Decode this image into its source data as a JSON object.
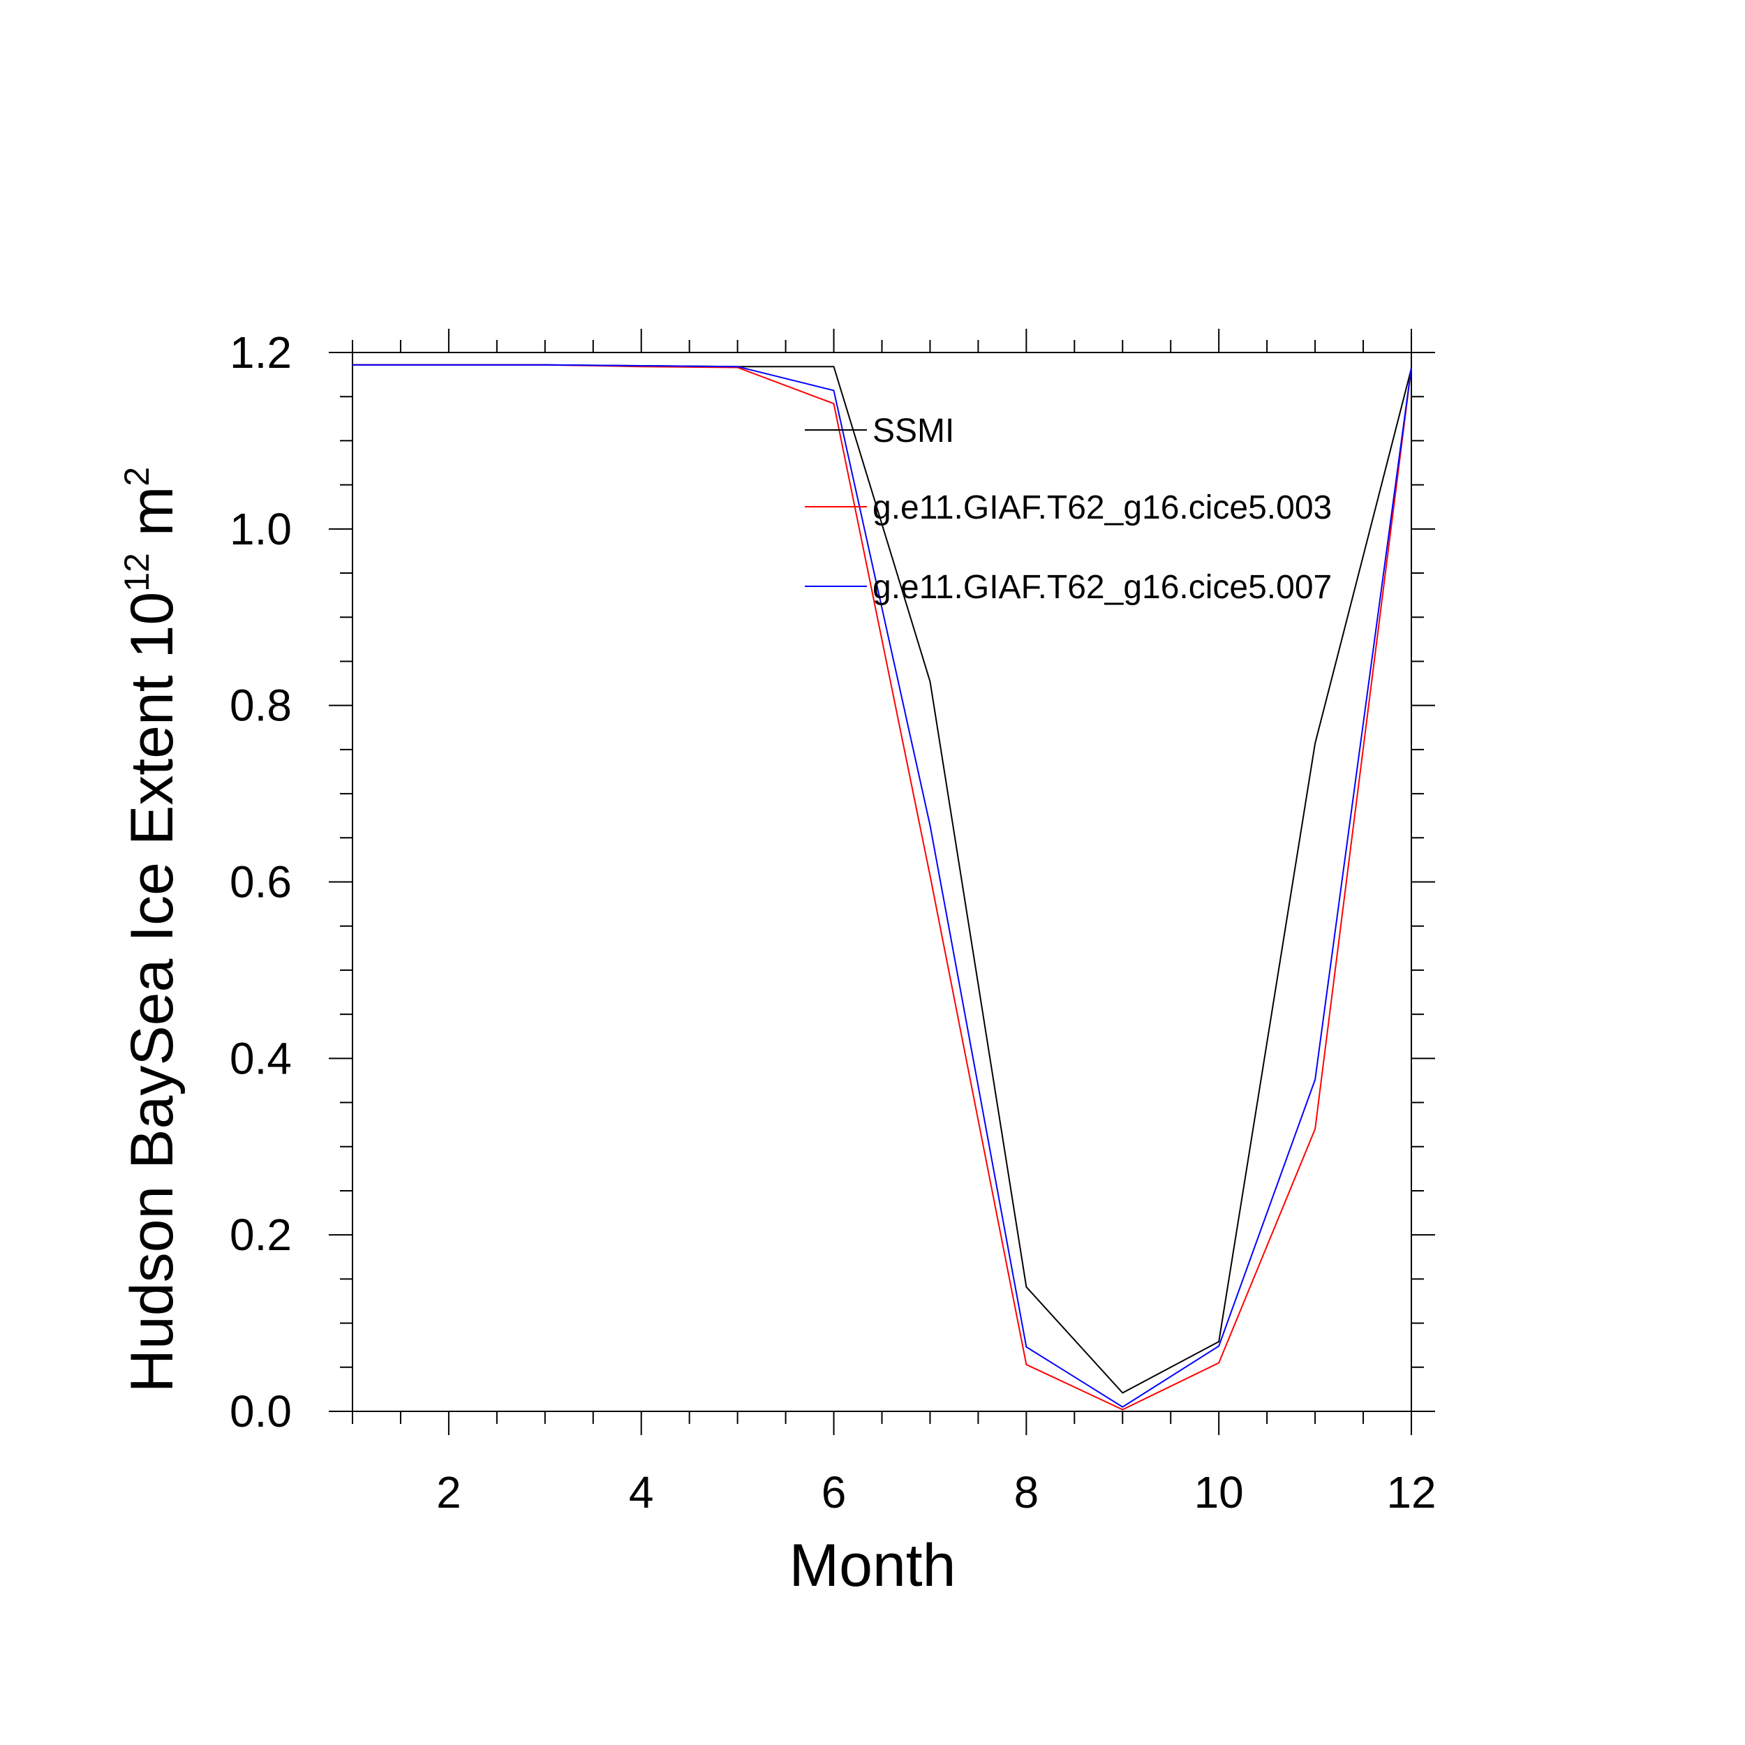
{
  "chart_data": {
    "type": "line",
    "title": "",
    "xlabel": "Month",
    "ylabel": "Hudson BaySea Ice Extent 10",
    "ylabel_exp": "12",
    "ylabel_unit": " m",
    "ylabel_unit_exp": "2",
    "xlim": [
      1,
      12
    ],
    "ylim": [
      0.0,
      1.2
    ],
    "xticks": [
      2,
      4,
      6,
      8,
      10,
      12
    ],
    "xtick_labels": [
      "2",
      "4",
      "6",
      "8",
      "10",
      "12"
    ],
    "yticks": [
      0.0,
      0.2,
      0.4,
      0.6,
      0.8,
      1.0,
      1.2
    ],
    "ytick_labels": [
      "0.0",
      "0.2",
      "0.4",
      "0.6",
      "0.8",
      "1.0",
      "1.2"
    ],
    "grid": false,
    "legend_position": "top-right",
    "x": [
      1,
      2,
      3,
      4,
      5,
      6,
      7,
      8,
      9,
      10,
      11,
      12
    ],
    "series": [
      {
        "name": "SSMI",
        "color": "#000000",
        "values": [
          1.186,
          1.186,
          1.186,
          1.185,
          1.184,
          1.184,
          0.827,
          0.141,
          0.021,
          0.079,
          0.757,
          1.182
        ]
      },
      {
        "name": "g.e11.GIAF.T62_g16.cice5.003",
        "color": "#ff0000",
        "values": [
          1.186,
          1.186,
          1.186,
          1.184,
          1.183,
          1.142,
          0.607,
          0.053,
          0.002,
          0.055,
          0.32,
          1.183
        ]
      },
      {
        "name": "g.e11.GIAF.T62_g16.cice5.007",
        "color": "#0000ff",
        "values": [
          1.186,
          1.186,
          1.186,
          1.185,
          1.184,
          1.157,
          0.664,
          0.073,
          0.005,
          0.074,
          0.376,
          1.183
        ]
      }
    ]
  }
}
